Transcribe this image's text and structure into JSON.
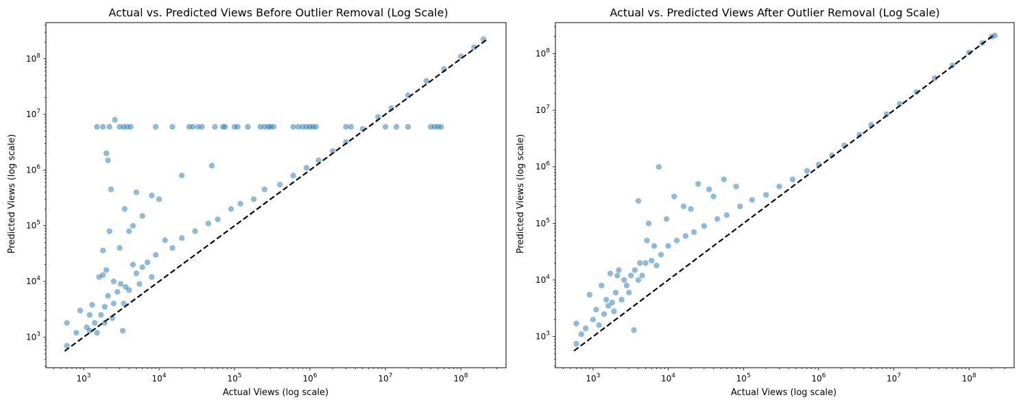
{
  "chart_data": [
    {
      "type": "scatter",
      "title": "Actual vs. Predicted Views Before Outlier Removal (Log Scale)",
      "xlabel": "Actual Views (log scale)",
      "ylabel": "Predicted Views (log scale)",
      "xscale": "log",
      "yscale": "log",
      "xlim_log10": [
        2.5,
        8.6
      ],
      "ylim_log10": [
        2.45,
        8.65
      ],
      "xticks": [
        {
          "base": "10",
          "exp": "3",
          "log": 3
        },
        {
          "base": "10",
          "exp": "4",
          "log": 4
        },
        {
          "base": "10",
          "exp": "5",
          "log": 5
        },
        {
          "base": "10",
          "exp": "6",
          "log": 6
        },
        {
          "base": "10",
          "exp": "7",
          "log": 7
        },
        {
          "base": "10",
          "exp": "8",
          "log": 8
        }
      ],
      "yticks": [
        {
          "base": "10",
          "exp": "3",
          "log": 3
        },
        {
          "base": "10",
          "exp": "4",
          "log": 4
        },
        {
          "base": "10",
          "exp": "5",
          "log": 5
        },
        {
          "base": "10",
          "exp": "6",
          "log": 6
        },
        {
          "base": "10",
          "exp": "7",
          "log": 7
        },
        {
          "base": "10",
          "exp": "8",
          "log": 8
        }
      ],
      "reference_line": {
        "from": [
          560,
          560
        ],
        "to": [
          220000000,
          220000000
        ],
        "style": "dashed",
        "color": "#000000"
      },
      "point_color": "#1f77b4",
      "point_alpha": 0.5,
      "series": [
        {
          "name": "predictions",
          "x": [
            600,
            600,
            800,
            900,
            1100,
            1200,
            1300,
            1400,
            1700,
            1800,
            1900,
            2000,
            2100,
            2400,
            2500,
            2800,
            3100,
            3400,
            3600,
            4000,
            4500,
            5000,
            5500,
            6000,
            7000,
            8000,
            9000,
            12000,
            15000,
            20000,
            30000,
            45000,
            60000,
            90000,
            120000,
            180000,
            250000,
            400000,
            600000,
            900000,
            1300000,
            2000000,
            3000000,
            5000000,
            8000000,
            12000000,
            20000000,
            35000000,
            60000000,
            100000000,
            150000000,
            200000000,
            1500,
            1800,
            2200,
            2600,
            3000,
            3400,
            3800,
            4200,
            9000,
            15000,
            25000,
            28000,
            33000,
            37000,
            55000,
            70000,
            75000,
            100000,
            110000,
            150000,
            220000,
            250000,
            280000,
            300000,
            330000,
            600000,
            700000,
            800000,
            900000,
            1000000,
            1100000,
            1200000,
            3000000,
            3500000,
            10000000,
            14000000,
            20000000,
            40000000,
            45000000,
            50000000,
            55000000,
            2100,
            2000,
            2300,
            1900,
            2500,
            1800,
            1200,
            1500,
            3000,
            4000,
            6000,
            8000,
            10000,
            20000,
            50000,
            5000,
            3500,
            2200,
            1600,
            3300,
            4500
          ],
          "y": [
            700,
            1800,
            1200,
            3000,
            1500,
            2500,
            3800,
            1800,
            2500,
            36000,
            3500,
            16000,
            5500,
            2200,
            4000,
            6500,
            9000,
            4000,
            8000,
            7000,
            20000,
            14000,
            9000,
            18000,
            22000,
            12000,
            30000,
            55000,
            40000,
            60000,
            80000,
            110000,
            130000,
            200000,
            250000,
            300000,
            450000,
            550000,
            800000,
            1100000,
            1500000,
            2200000,
            3200000,
            5500000,
            9000000,
            13000000,
            22000000,
            40000000,
            65000000,
            110000000,
            160000000,
            225000000,
            6000000,
            6000000,
            6000000,
            8000000,
            6000000,
            6000000,
            6000000,
            6000000,
            6000000,
            6000000,
            6000000,
            6000000,
            6000000,
            6000000,
            6000000,
            6000000,
            6000000,
            6000000,
            6000000,
            6000000,
            6000000,
            6000000,
            6000000,
            6000000,
            6000000,
            6000000,
            6000000,
            6000000,
            6000000,
            6000000,
            6000000,
            6000000,
            6000000,
            6000000,
            6000000,
            6000000,
            6000000,
            6000000,
            6000000,
            6000000,
            6000000,
            1500000,
            2000000,
            450000,
            1800,
            10000,
            13000,
            1300,
            1200,
            40000,
            80000,
            150000,
            350000,
            300000,
            800000,
            1200000,
            400000,
            200000,
            80000,
            12000,
            1300,
            100000
          ]
        }
      ]
    },
    {
      "type": "scatter",
      "title": "Actual vs. Predicted Views After Outlier Removal (Log Scale)",
      "xlabel": "Actual Views (log scale)",
      "ylabel": "Predicted Views (log scale)",
      "xscale": "log",
      "yscale": "log",
      "xlim_log10": [
        2.5,
        8.6
      ],
      "ylim_log10": [
        2.45,
        8.55
      ],
      "xticks": [
        {
          "base": "10",
          "exp": "3",
          "log": 3
        },
        {
          "base": "10",
          "exp": "4",
          "log": 4
        },
        {
          "base": "10",
          "exp": "5",
          "log": 5
        },
        {
          "base": "10",
          "exp": "6",
          "log": 6
        },
        {
          "base": "10",
          "exp": "7",
          "log": 7
        },
        {
          "base": "10",
          "exp": "8",
          "log": 8
        }
      ],
      "yticks": [
        {
          "base": "10",
          "exp": "3",
          "log": 3
        },
        {
          "base": "10",
          "exp": "4",
          "log": 4
        },
        {
          "base": "10",
          "exp": "5",
          "log": 5
        },
        {
          "base": "10",
          "exp": "6",
          "log": 6
        },
        {
          "base": "10",
          "exp": "7",
          "log": 7
        },
        {
          "base": "10",
          "exp": "8",
          "log": 8
        }
      ],
      "reference_line": {
        "from": [
          560,
          560
        ],
        "to": [
          220000000,
          220000000
        ],
        "style": "dashed",
        "color": "#000000"
      },
      "point_color": "#1f77b4",
      "point_alpha": 0.5,
      "series": [
        {
          "name": "predictions",
          "x": [
            600,
            600,
            700,
            800,
            900,
            1000,
            1200,
            1400,
            1600,
            1800,
            2000,
            2400,
            2800,
            3200,
            3600,
            4000,
            4500,
            5000,
            6000,
            7000,
            8000,
            10000,
            13000,
            17000,
            22000,
            30000,
            45000,
            60000,
            90000,
            130000,
            200000,
            300000,
            450000,
            700000,
            1000000,
            1500000,
            2200000,
            3500000,
            5000000,
            8000000,
            12000000,
            20000000,
            35000000,
            60000000,
            100000000,
            150000000,
            200000000,
            220000000,
            1100,
            1300,
            1500,
            1900,
            2100,
            2600,
            3000,
            4200,
            5500,
            7500,
            9500,
            12000,
            16000,
            25000,
            35000,
            55000,
            80000,
            4000,
            3500,
            5200,
            6500,
            2200,
            1700,
            20000,
            40000
          ],
          "y": [
            750,
            1700,
            1100,
            1400,
            5500,
            2000,
            1600,
            2500,
            3500,
            4000,
            6000,
            4500,
            8000,
            12000,
            15000,
            10000,
            12000,
            20000,
            22000,
            18000,
            28000,
            40000,
            50000,
            60000,
            70000,
            90000,
            120000,
            140000,
            200000,
            260000,
            320000,
            450000,
            600000,
            850000,
            1100000,
            1600000,
            2400000,
            3700000,
            5500000,
            8500000,
            13000000,
            21000000,
            37000000,
            62000000,
            105000000,
            155000000,
            200000000,
            210000000,
            3000,
            8000,
            4500,
            2800,
            12000,
            10000,
            6000,
            20000,
            100000,
            1000000,
            120000,
            300000,
            200000,
            500000,
            400000,
            600000,
            450000,
            250000,
            1300,
            50000,
            40000,
            15000,
            13000,
            180000,
            300000
          ]
        }
      ]
    }
  ]
}
